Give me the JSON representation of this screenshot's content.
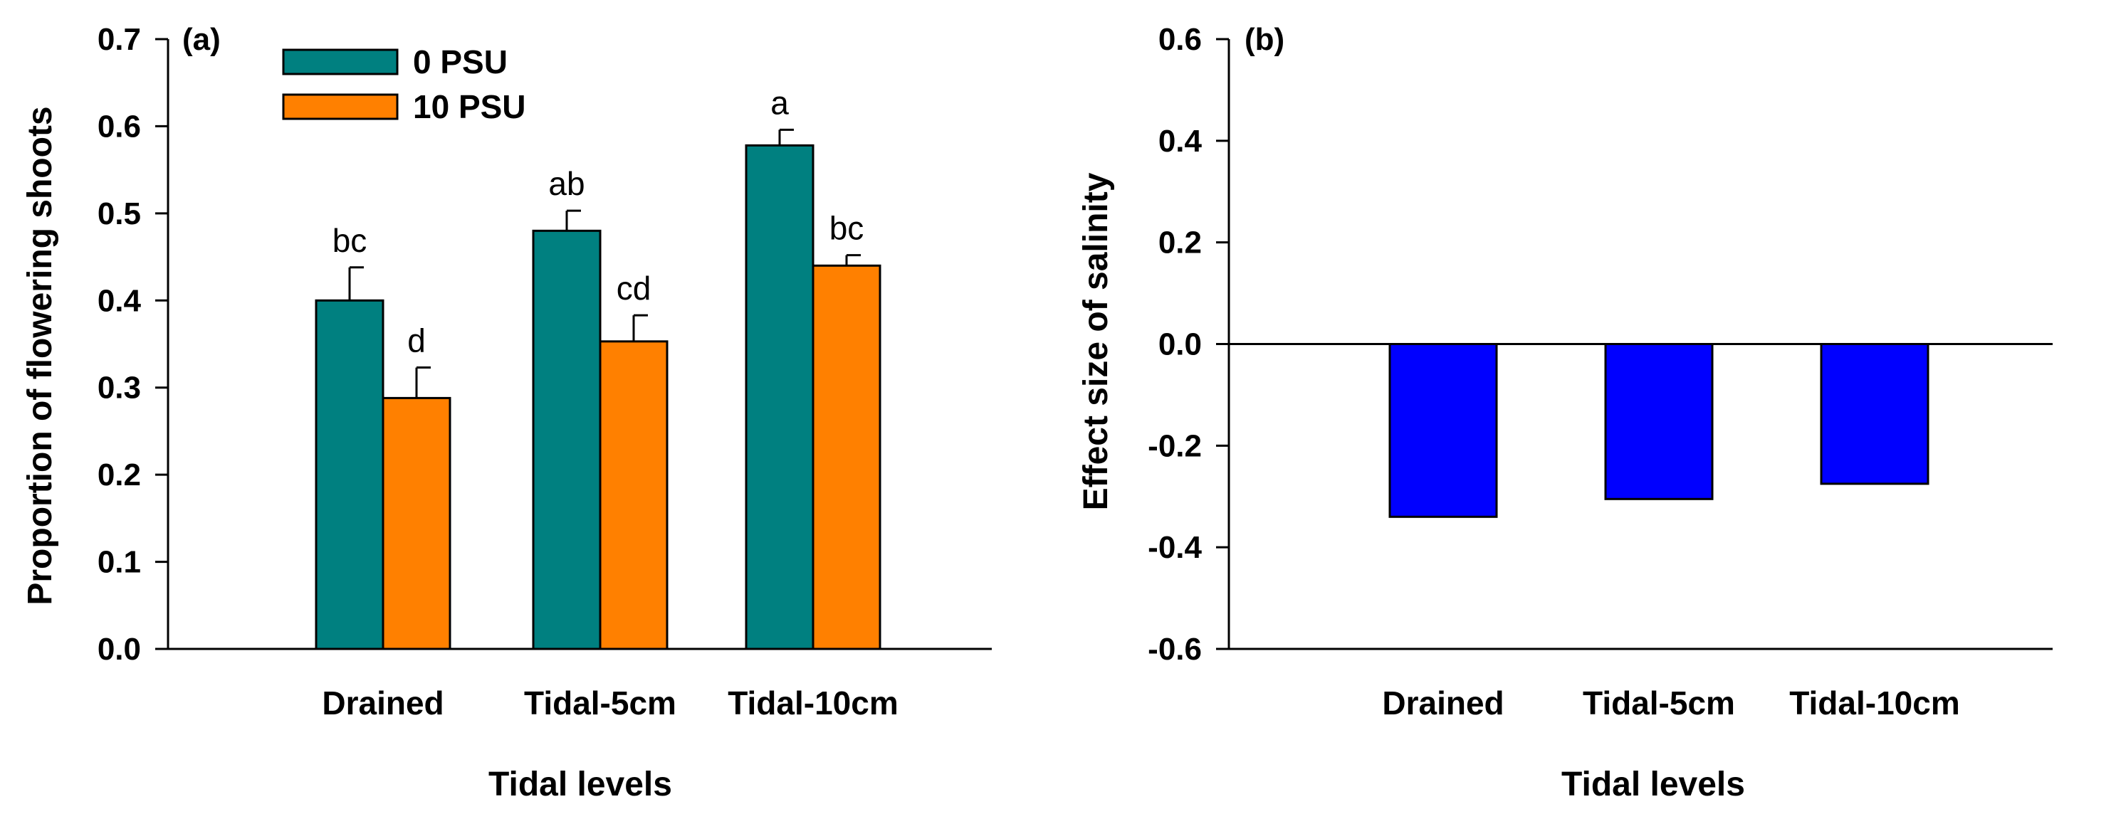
{
  "chart_data": [
    {
      "type": "bar",
      "panel": "(a)",
      "categories": [
        "Drained",
        "Tidal-5cm",
        "Tidal-10cm"
      ],
      "series": [
        {
          "name": "0 PSU",
          "color": "#008080",
          "values": [
            0.4,
            0.48,
            0.578
          ],
          "errors": [
            0.038,
            0.023,
            0.018
          ],
          "labels": [
            "bc",
            "ab",
            "a"
          ]
        },
        {
          "name": "10 PSU",
          "color": "#FF8000",
          "values": [
            0.288,
            0.353,
            0.44
          ],
          "errors": [
            0.035,
            0.03,
            0.012
          ],
          "labels": [
            "d",
            "cd",
            "bc"
          ]
        }
      ],
      "xlabel": "Tidal levels",
      "ylabel": "Proportion of flowering shoots",
      "ylim": [
        0.0,
        0.7
      ],
      "yticks": [
        "0.0",
        "0.1",
        "0.2",
        "0.3",
        "0.4",
        "0.5",
        "0.6",
        "0.7"
      ],
      "legend": "top-left"
    },
    {
      "type": "bar",
      "panel": "(b)",
      "categories": [
        "Drained",
        "Tidal-5cm",
        "Tidal-10cm"
      ],
      "series": [
        {
          "name": "Effect size",
          "color": "#0000FF",
          "values": [
            -0.34,
            -0.305,
            -0.275
          ]
        }
      ],
      "xlabel": "Tidal levels",
      "ylabel": "Effect size of salinity",
      "ylim": [
        -0.6,
        0.6
      ],
      "yticks": [
        "-0.6",
        "-0.4",
        "-0.2",
        "0.0",
        "0.2",
        "0.4",
        "0.6"
      ]
    }
  ]
}
